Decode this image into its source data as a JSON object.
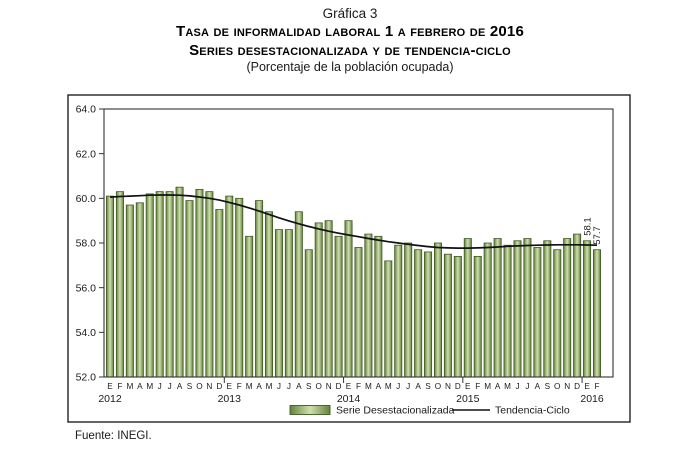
{
  "header": {
    "figure_label": "Gráfica 3",
    "title": "Tasa de informalidad laboral 1 a febrero de 2016",
    "subtitle": "Series desestacionalizada y de tendencia-ciclo",
    "units_note": "(Porcentaje de la población ocupada)"
  },
  "footer": {
    "source": "Fuente: INEGI."
  },
  "chart_data": {
    "type": "bar",
    "n_points": 50,
    "month_letters": [
      "E",
      "F",
      "M",
      "A",
      "M",
      "J",
      "J",
      "A",
      "S",
      "O",
      "N",
      "D"
    ],
    "years": [
      {
        "label": "2012",
        "start_index": 0
      },
      {
        "label": "2013",
        "start_index": 12
      },
      {
        "label": "2014",
        "start_index": 24
      },
      {
        "label": "2015",
        "start_index": 36
      },
      {
        "label": "2016",
        "start_index": 48
      }
    ],
    "series": [
      {
        "name": "Serie Desestacionalizada",
        "type": "bar",
        "values": [
          60.1,
          60.3,
          59.7,
          59.8,
          60.2,
          60.3,
          60.3,
          60.5,
          59.9,
          60.4,
          60.3,
          59.5,
          60.1,
          60.0,
          58.3,
          59.9,
          59.4,
          58.6,
          58.6,
          59.4,
          57.7,
          58.9,
          59.0,
          58.3,
          59.0,
          57.8,
          58.4,
          58.3,
          57.2,
          57.9,
          58.0,
          57.7,
          57.6,
          58.0,
          57.5,
          57.4,
          58.2,
          57.4,
          58.0,
          58.2,
          57.9,
          58.1,
          58.2,
          57.8,
          58.1,
          57.7,
          58.2,
          58.4,
          58.1,
          57.7
        ]
      },
      {
        "name": "Tendencia-Ciclo",
        "type": "line",
        "values": [
          60.05,
          60.08,
          60.1,
          60.12,
          60.14,
          60.15,
          60.15,
          60.14,
          60.11,
          60.06,
          60.0,
          59.92,
          59.82,
          59.7,
          59.57,
          59.43,
          59.28,
          59.13,
          58.99,
          58.86,
          58.74,
          58.63,
          58.53,
          58.44,
          58.36,
          58.28,
          58.2,
          58.13,
          58.06,
          58.0,
          57.94,
          57.89,
          57.84,
          57.8,
          57.78,
          57.77,
          57.77,
          57.78,
          57.8,
          57.82,
          57.85,
          57.87,
          57.89,
          57.9,
          57.91,
          57.92,
          57.92,
          57.92,
          57.91,
          57.9
        ]
      }
    ],
    "ylim": [
      52.0,
      64.0
    ],
    "ytick_labels": [
      "64.0",
      "62.0",
      "60.0",
      "58.0",
      "56.0",
      "54.0",
      "52.0"
    ],
    "grid": false,
    "legend_position": "bottom-inside",
    "legend": [
      {
        "label": "Serie Desestacionalizada",
        "marker": "bar-swatch"
      },
      {
        "label": "Tendencia-Ciclo",
        "marker": "line"
      }
    ],
    "annotations": [
      {
        "text": "58.1",
        "index": 48
      },
      {
        "text": "57.7",
        "index": 49
      }
    ],
    "colors": {
      "bar_edge": "#64823c",
      "bar_center": "#cfdfae",
      "bar_border": "#3f5a23",
      "trend_line": "#111111",
      "frame": "#333333",
      "outer_box": "#222222"
    }
  }
}
